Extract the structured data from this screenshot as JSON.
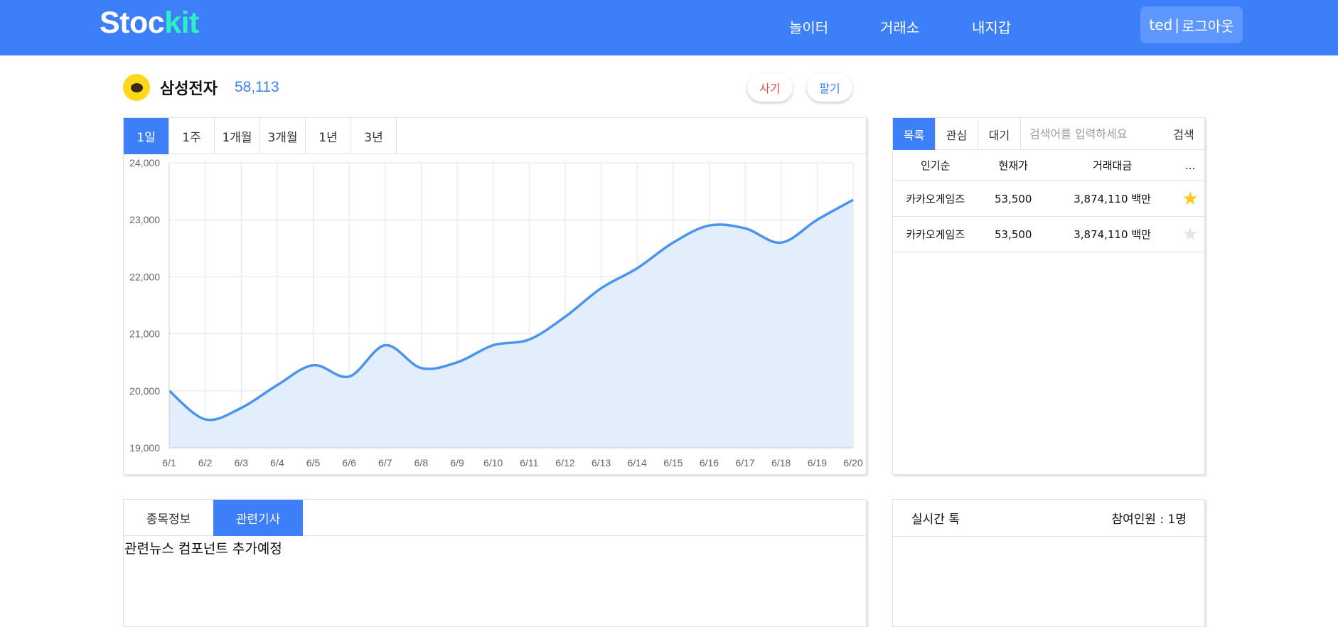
{
  "app": {
    "logo_main": "Stoc",
    "logo_accent": "kit",
    "brand_color": "#3d7ff8",
    "accent_color": "#2ff0c4"
  },
  "nav": {
    "items": [
      {
        "label": "놀이터"
      },
      {
        "label": "거래소"
      },
      {
        "label": "내지갑"
      }
    ],
    "user": "ted",
    "separator": "|",
    "logout": "로그아웃"
  },
  "stock": {
    "name": "삼성전자",
    "price": "58,113",
    "logo_icon": "kakao-chat-icon",
    "buy_label": "사기",
    "sell_label": "팔기",
    "buy_color": "#f0444a",
    "sell_color": "#3d7ff8"
  },
  "range_tabs": [
    {
      "label": "1일",
      "active": true
    },
    {
      "label": "1주",
      "active": false
    },
    {
      "label": "1개월",
      "active": false
    },
    {
      "label": "3개월",
      "active": false
    },
    {
      "label": "1년",
      "active": false
    },
    {
      "label": "3년",
      "active": false
    }
  ],
  "chart_data": {
    "type": "area",
    "x": [
      "6/1",
      "6/2",
      "6/3",
      "6/4",
      "6/5",
      "6/6",
      "6/7",
      "6/8",
      "6/9",
      "6/10",
      "6/11",
      "6/12",
      "6/13",
      "6/14",
      "6/15",
      "6/16",
      "6/17",
      "6/18",
      "6/19",
      "6/20"
    ],
    "series": [
      {
        "values": [
          20000,
          19500,
          19700,
          20100,
          20450,
          20250,
          20800,
          20400,
          20500,
          20800,
          20900,
          21300,
          21800,
          22150,
          22600,
          22900,
          22850,
          22600,
          23000,
          23350
        ]
      }
    ],
    "ylim": [
      19000,
      24000
    ],
    "yticks": [
      "19,000",
      "20,000",
      "21,000",
      "22,000",
      "23,000",
      "24,000"
    ],
    "grid": true,
    "line_color": "#4a94f0",
    "fill_color": "#e3eefc"
  },
  "list": {
    "tabs": [
      {
        "label": "목록",
        "active": true
      },
      {
        "label": "관심",
        "active": false
      },
      {
        "label": "대기",
        "active": false
      }
    ],
    "search_placeholder": "검색어를 입력하세요",
    "search_button": "검색",
    "columns": [
      "인기순",
      "현재가",
      "거래대금",
      "..."
    ],
    "rows": [
      {
        "name": "카카오게임즈",
        "price": "53,500",
        "volume": "3,874,110 백만",
        "starred": true,
        "star": "★"
      },
      {
        "name": "카카오게임즈",
        "price": "53,500",
        "volume": "3,874,110 백만",
        "starred": false,
        "star": "★"
      }
    ]
  },
  "info": {
    "tabs": [
      {
        "label": "종목정보",
        "active": false
      },
      {
        "label": "관련기사",
        "active": true
      }
    ],
    "body": "관련뉴스 컴포넌트 추가예정"
  },
  "talk": {
    "title": "실시간 톡",
    "participants": "참여인원 : 1명"
  }
}
